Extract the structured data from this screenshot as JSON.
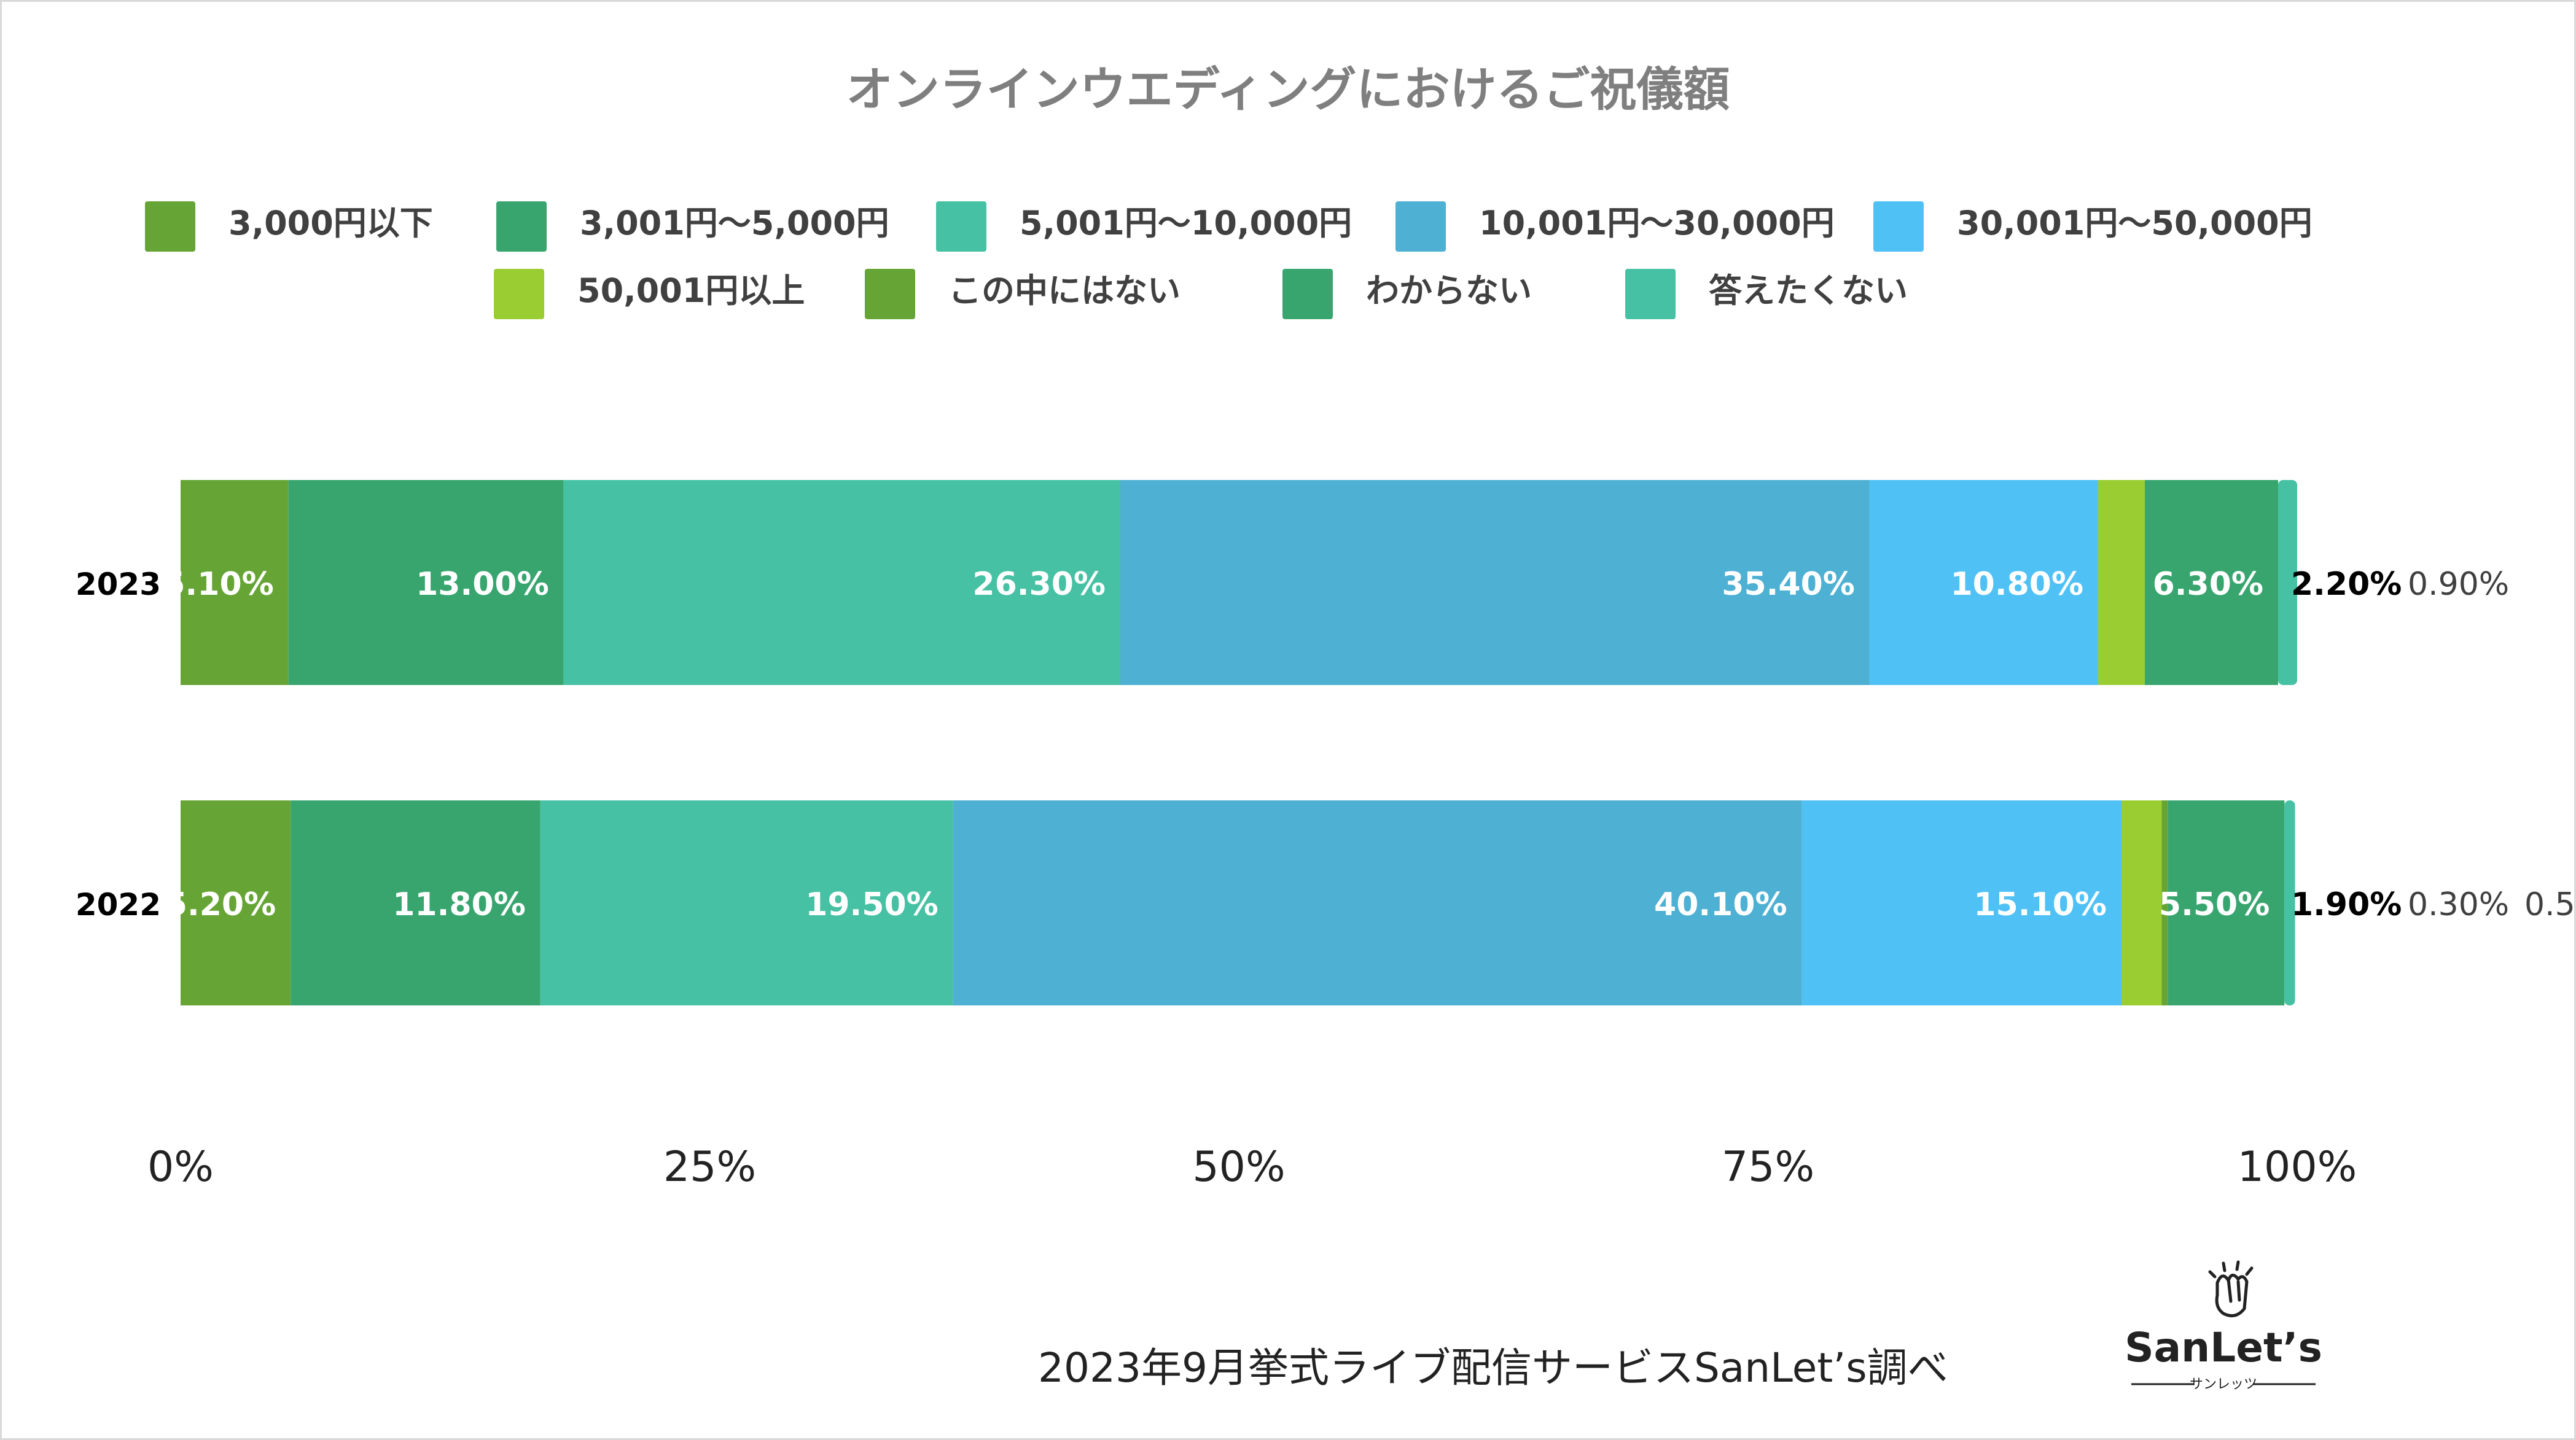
{
  "chart_data": {
    "type": "bar",
    "orientation": "horizontal",
    "stacked": true,
    "title": "オンラインウエディングにおけるご祝儀額",
    "categories": [
      "2023",
      "2022"
    ],
    "series": [
      {
        "name": "3,000円以下",
        "color": "#66a535",
        "values": [
          5.1,
          5.2
        ],
        "labels": [
          "5.10%",
          "5.20%"
        ]
      },
      {
        "name": "3,001円〜5,000円",
        "color": "#38a56f",
        "values": [
          13.0,
          11.8
        ],
        "labels": [
          "13.00%",
          "11.80%"
        ]
      },
      {
        "name": "5,001円〜10,000円",
        "color": "#46c1a3",
        "values": [
          26.3,
          19.5
        ],
        "labels": [
          "26.30%",
          "19.50%"
        ]
      },
      {
        "name": "10,001円〜30,000円",
        "color": "#4eb0d2",
        "values": [
          35.4,
          40.1
        ],
        "labels": [
          "35.40%",
          "40.10%"
        ]
      },
      {
        "name": "30,001円〜50,000円",
        "color": "#50c1f5",
        "values": [
          10.8,
          15.1
        ],
        "labels": [
          "10.80%",
          "15.10%"
        ]
      },
      {
        "name": "50,001円以上",
        "color": "#9acd32",
        "values": [
          2.2,
          1.9
        ],
        "labels": [
          "2.20%",
          "1.90%"
        ]
      },
      {
        "name": "この中にはない",
        "color": "#66a535",
        "values": [
          0.0,
          0.3
        ],
        "labels": [
          "",
          "0.30%"
        ]
      },
      {
        "name": "わからない",
        "color": "#38a56f",
        "values": [
          6.3,
          5.5
        ],
        "labels": [
          "6.30%",
          "5.50%"
        ]
      },
      {
        "name": "答えたくない",
        "color": "#46c1a3",
        "values": [
          0.9,
          0.5
        ],
        "labels": [
          "0.90%",
          "0.5"
        ]
      }
    ],
    "xlim": [
      0,
      100
    ],
    "x_ticks": [
      "0%",
      "25%",
      "50%",
      "75%",
      "100%"
    ],
    "legend_position": "top",
    "grid": false
  },
  "footer": {
    "note": "2023年9月挙式ライブ配信サービスSanLet’s調べ"
  },
  "logo": {
    "name": "SanLet’s",
    "sub": "サンレッツ",
    "icon": "clapping-hands-icon"
  }
}
